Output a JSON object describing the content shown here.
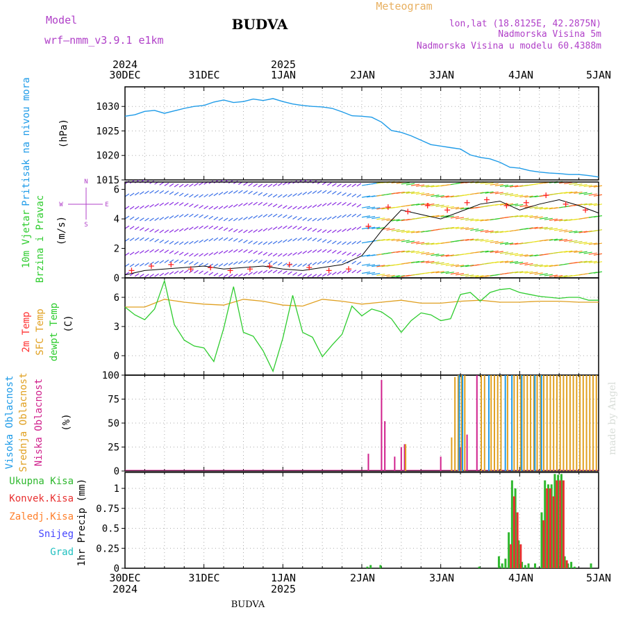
{
  "header": {
    "model_label": "Model",
    "model_name": "wrf—nmm_v3.9.1 e1km",
    "station": "BUDVA",
    "product": "Meteogram",
    "lonlat": "lon,lat (18.8125E, 42.2875N)",
    "elevation": "Nadmorska Visina 5m",
    "model_elevation": "Nadmorska Visina u modelu 60.4388m",
    "footer_station": "BUDVA",
    "watermark": "made by Angel"
  },
  "colors": {
    "pressure": "#1e9be8",
    "temp2m": "#ff3030",
    "sfc": "#e0a020",
    "dewpt": "#2ecc2e",
    "wind_dir": "#ff2020",
    "wind_speed_line": "#000000",
    "cloud_high": "#1e9be8",
    "cloud_mid": "#e0a020",
    "cloud_low": "#d0208c",
    "precip_total": "#2eb82e",
    "precip_conv": "#e83030",
    "precip_frozen": "#ff7f2a",
    "snow": "#4444ff",
    "hail": "#20c0c0",
    "header_purple": "#b040c8",
    "header_gold": "#e8b060"
  },
  "time_axis": {
    "top_labels": [
      {
        "day": "30DEC",
        "year": "2024"
      },
      {
        "day": "31DEC",
        "year": ""
      },
      {
        "day": "1JAN",
        "year": "2025"
      },
      {
        "day": "2JAN",
        "year": ""
      },
      {
        "day": "3JAN",
        "year": ""
      },
      {
        "day": "4JAN",
        "year": ""
      },
      {
        "day": "5JAN",
        "year": ""
      }
    ],
    "bottom_labels": [
      {
        "day": "30DEC",
        "year": "2024"
      },
      {
        "day": "31DEC",
        "year": ""
      },
      {
        "day": "1JAN",
        "year": "2025"
      },
      {
        "day": "2JAN",
        "year": ""
      },
      {
        "day": "3JAN",
        "year": ""
      },
      {
        "day": "4JAN",
        "year": ""
      },
      {
        "day": "5JAN",
        "year": ""
      }
    ]
  },
  "chart_data": [
    {
      "type": "line",
      "panel": "pressure",
      "labels": [
        "Pritisak na nivou mora"
      ],
      "unit": "(hPa)",
      "x_unit": "hours from 30DEC 00UTC",
      "yticks": [
        1030,
        1025,
        1020,
        1015
      ],
      "ylim": [
        1015,
        1034
      ],
      "grid": true,
      "x": [
        0,
        3,
        6,
        9,
        12,
        15,
        18,
        21,
        24,
        27,
        30,
        33,
        36,
        39,
        42,
        45,
        48,
        51,
        54,
        57,
        60,
        63,
        66,
        69,
        72,
        75,
        78,
        81,
        84,
        87,
        90,
        93,
        96,
        99,
        102,
        105,
        108,
        111,
        114,
        117,
        120,
        123,
        126,
        129,
        132,
        135,
        138,
        141,
        144
      ],
      "values": [
        1028,
        1028.3,
        1029,
        1029.2,
        1028.6,
        1029.1,
        1029.6,
        1030,
        1030.2,
        1030.9,
        1031.3,
        1030.8,
        1031,
        1031.5,
        1031.2,
        1031.6,
        1031,
        1030.5,
        1030.2,
        1030,
        1029.9,
        1029.6,
        1028.9,
        1028.1,
        1028,
        1027.8,
        1026.8,
        1025.1,
        1024.7,
        1024,
        1023.1,
        1022.2,
        1021.9,
        1021.6,
        1021.3,
        1020.1,
        1019.6,
        1019.3,
        1018.6,
        1017.6,
        1017.4,
        1016.9,
        1016.6,
        1016.4,
        1016.3,
        1016.1,
        1016.1,
        1015.9,
        1015.6
      ]
    },
    {
      "type": "line",
      "panel": "wind",
      "labels": [
        "10m Vjetar",
        "Brzina i Pravac"
      ],
      "unit": "(m/s)",
      "compass": [
        "N",
        "S",
        "W",
        "E"
      ],
      "yticks": [
        0,
        2,
        4,
        6
      ],
      "ylim": [
        0,
        6.5
      ],
      "x_unit": "hours from 30DEC 00UTC",
      "speed": {
        "x": [
          0,
          6,
          12,
          18,
          24,
          30,
          36,
          42,
          48,
          54,
          60,
          66,
          72,
          78,
          84,
          90,
          96,
          102,
          108,
          114,
          120,
          126,
          132,
          138,
          144
        ],
        "values": [
          0.2,
          0.5,
          0.6,
          0.7,
          0.8,
          0.6,
          0.7,
          0.8,
          0.6,
          0.5,
          0.7,
          0.9,
          1.5,
          3.2,
          4.6,
          4.3,
          4.0,
          4.5,
          5.0,
          5.2,
          4.6,
          5.0,
          5.3,
          4.9,
          4.4
        ]
      },
      "direction": {
        "x": [
          2,
          8,
          14,
          20,
          26,
          32,
          38,
          44,
          50,
          56,
          62,
          68,
          74,
          80,
          86,
          92,
          98,
          104,
          110,
          116,
          122,
          128,
          134,
          140
        ],
        "values": [
          0.5,
          0.8,
          0.9,
          0.6,
          0.7,
          0.5,
          0.6,
          0.8,
          0.9,
          0.7,
          0.5,
          0.6,
          3.5,
          4.8,
          4.5,
          4.9,
          4.6,
          5.1,
          5.3,
          4.9,
          5.1,
          5.6,
          5.0,
          4.6
        ]
      }
    },
    {
      "type": "line",
      "panel": "temperature",
      "labels": [
        "2m Temp",
        "SFC Temp",
        "dewpt Temp"
      ],
      "unit": "(C)",
      "yticks": [
        6,
        3,
        0
      ],
      "ylim": [
        -2,
        8
      ],
      "grid": true,
      "x_unit": "hours from 30DEC 00UTC",
      "series": [
        {
          "name": "SFC Temp",
          "color_key": "sfc",
          "x": [
            0,
            6,
            12,
            18,
            24,
            30,
            36,
            42,
            48,
            54,
            60,
            66,
            72,
            78,
            84,
            90,
            96,
            102,
            108,
            114,
            120,
            126,
            132,
            138,
            144
          ],
          "values": [
            5.0,
            5.0,
            5.8,
            5.5,
            5.3,
            5.2,
            5.8,
            5.6,
            5.2,
            5.1,
            5.8,
            5.6,
            5.3,
            5.5,
            5.7,
            5.4,
            5.4,
            5.6,
            5.7,
            5.5,
            5.5,
            5.6,
            5.6,
            5.5,
            5.5
          ]
        },
        {
          "name": "dewpt Temp",
          "color_key": "dewpt",
          "x": [
            0,
            3,
            6,
            9,
            12,
            15,
            18,
            21,
            24,
            27,
            30,
            33,
            36,
            39,
            42,
            45,
            48,
            51,
            54,
            57,
            60,
            63,
            66,
            69,
            72,
            75,
            78,
            81,
            84,
            87,
            90,
            93,
            96,
            99,
            102,
            105,
            108,
            111,
            114,
            117,
            120,
            123,
            126,
            129,
            132,
            135,
            138,
            141,
            144
          ],
          "values": [
            5,
            4.2,
            3.7,
            4.8,
            7.7,
            3.2,
            1.6,
            1.0,
            0.8,
            -0.6,
            2.8,
            7.1,
            2.4,
            2.0,
            0.5,
            -1.6,
            1.8,
            6.2,
            2.4,
            1.9,
            -0.1,
            1.1,
            2.2,
            5.1,
            4.1,
            4.8,
            4.5,
            3.8,
            2.4,
            3.6,
            4.4,
            4.2,
            3.6,
            3.8,
            6.3,
            6.5,
            5.6,
            6.5,
            6.8,
            6.9,
            6.5,
            6.3,
            6.1,
            6.0,
            5.9,
            6.0,
            6.0,
            5.7,
            5.7
          ]
        }
      ]
    },
    {
      "type": "bar",
      "panel": "clouds",
      "labels": [
        "Visoka Oblacnost",
        "Srednja Oblacnost",
        "Niska Oblacnost"
      ],
      "unit": "(%)",
      "yticks": [
        100,
        75,
        50,
        25,
        0
      ],
      "ylim": [
        0,
        100
      ],
      "grid": true,
      "x_unit": "hours from 30DEC 00UTC",
      "series": [
        {
          "name": "Niska Oblacnost",
          "color_key": "cloud_low",
          "x": [
            74,
            78,
            79,
            82,
            84,
            85,
            96,
            102,
            104,
            107
          ],
          "values": [
            18,
            95,
            52,
            15,
            25,
            28,
            15,
            25,
            38,
            100
          ]
        },
        {
          "name": "Srednja Oblacnost",
          "color_key": "cloud_mid",
          "x": [
            85,
            99,
            100,
            101,
            102,
            103,
            108,
            109,
            111,
            112,
            113,
            114,
            116,
            118,
            119,
            120,
            121,
            122,
            123,
            124,
            125,
            126,
            127,
            128,
            129,
            130,
            131,
            132,
            133,
            134,
            135,
            136,
            137,
            138,
            139,
            140,
            141,
            142,
            143
          ],
          "values": [
            28,
            35,
            98,
            100,
            100,
            100,
            100,
            100,
            100,
            100,
            100,
            100,
            100,
            100,
            100,
            100,
            100,
            100,
            100,
            100,
            100,
            100,
            100,
            100,
            100,
            100,
            100,
            100,
            100,
            100,
            100,
            100,
            100,
            100,
            100,
            100,
            100,
            100,
            100
          ]
        },
        {
          "name": "Visoka Oblacnost",
          "color_key": "cloud_high",
          "x": [
            101,
            102,
            110,
            115,
            117,
            120,
            124,
            126
          ],
          "values": [
            100,
            100,
            100,
            100,
            100,
            100,
            100,
            100
          ]
        }
      ]
    },
    {
      "type": "bar",
      "panel": "precip",
      "labels": [
        "Ukupna Kisa",
        "Konvek.Kisa",
        "Zaledj.Kisa",
        "Snijeg",
        "Grad"
      ],
      "unit": "1hr Precip (mm)",
      "yticks": [
        1,
        0.75,
        0.5,
        0.25,
        0
      ],
      "ylim": [
        0,
        1.2
      ],
      "grid": true,
      "x_unit": "hours from 30DEC 00UTC",
      "series": [
        {
          "name": "Ukupna Kisa",
          "color_key": "precip_total",
          "x": [
            74,
            75,
            78,
            108,
            114,
            115,
            116,
            117,
            118,
            119,
            120,
            121,
            122,
            123,
            125,
            127,
            128,
            129,
            130,
            131,
            132,
            133,
            134,
            135,
            136,
            137,
            142
          ],
          "values": [
            0.02,
            0.04,
            0.04,
            0.02,
            0.15,
            0.06,
            0.12,
            0.45,
            1.1,
            1.0,
            0.35,
            0.08,
            0.04,
            0.06,
            0.06,
            0.7,
            1.1,
            1.05,
            1.05,
            1.18,
            1.17,
            1.18,
            0.15,
            0.06,
            0.08,
            0.02,
            0.06
          ]
        },
        {
          "name": "Konvek.Kisa",
          "color_key": "precip_conv",
          "x": [
            117,
            118,
            119,
            120,
            127,
            128,
            129,
            130,
            131,
            132,
            133,
            134
          ],
          "values": [
            0.3,
            0.9,
            0.7,
            0.3,
            0.6,
            1.0,
            1.0,
            0.9,
            1.1,
            1.1,
            1.1,
            0.1
          ]
        }
      ]
    }
  ]
}
